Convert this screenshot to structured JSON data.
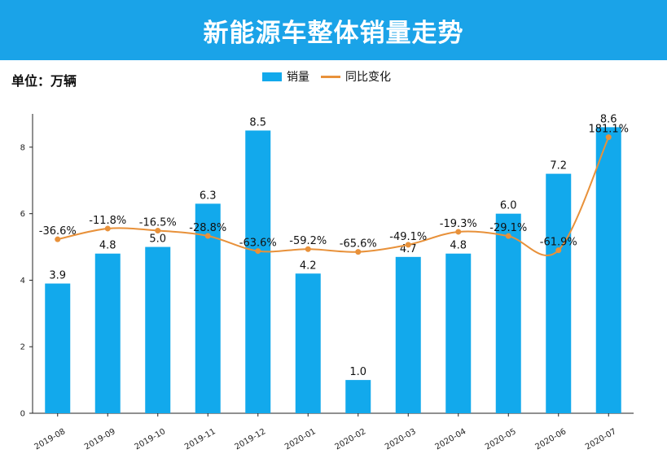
{
  "header": {
    "title": "新能源车整体销量走势"
  },
  "unit_label": "单位：万辆",
  "legend": {
    "bar_label": "销量",
    "line_label": "同比变化"
  },
  "colors": {
    "banner": "#1aa3e8",
    "bar": "#12a9ec",
    "line": "#e8913a"
  },
  "chart_data": {
    "type": "bar",
    "categories": [
      "2019-08",
      "2019-09",
      "2019-10",
      "2019-11",
      "2019-12",
      "2020-01",
      "2020-02",
      "2020-03",
      "2020-04",
      "2020-05",
      "2020-06",
      "2020-07"
    ],
    "series": [
      {
        "name": "销量",
        "type": "bar",
        "values": [
          3.9,
          4.8,
          5.0,
          6.3,
          8.5,
          4.2,
          1.0,
          4.7,
          4.8,
          6.0,
          7.2,
          8.6
        ],
        "labels": [
          "3.9",
          "4.8",
          "5.0",
          "6.3",
          "8.5",
          "4.2",
          "1.0",
          "4.7",
          "4.8",
          "6.0",
          "7.2",
          "8.6"
        ]
      },
      {
        "name": "同比变化",
        "type": "line",
        "values": [
          -36.6,
          -11.8,
          -16.5,
          -28.8,
          -63.6,
          -59.2,
          -65.6,
          -49.1,
          -19.3,
          -29.1,
          -61.9,
          181.1
        ],
        "labels": [
          "-36.6%",
          "-11.8%",
          "-16.5%",
          "-28.8%",
          "-63.6%",
          "-59.2%",
          "-65.6%",
          "-49.1%",
          "-19.3%",
          "-29.1%",
          "-61.9%",
          "181.1%"
        ]
      }
    ],
    "ylim": [
      0,
      9
    ],
    "yticks": [
      0,
      2,
      4,
      6,
      8
    ],
    "legend_position": "top-center",
    "grid": false
  }
}
